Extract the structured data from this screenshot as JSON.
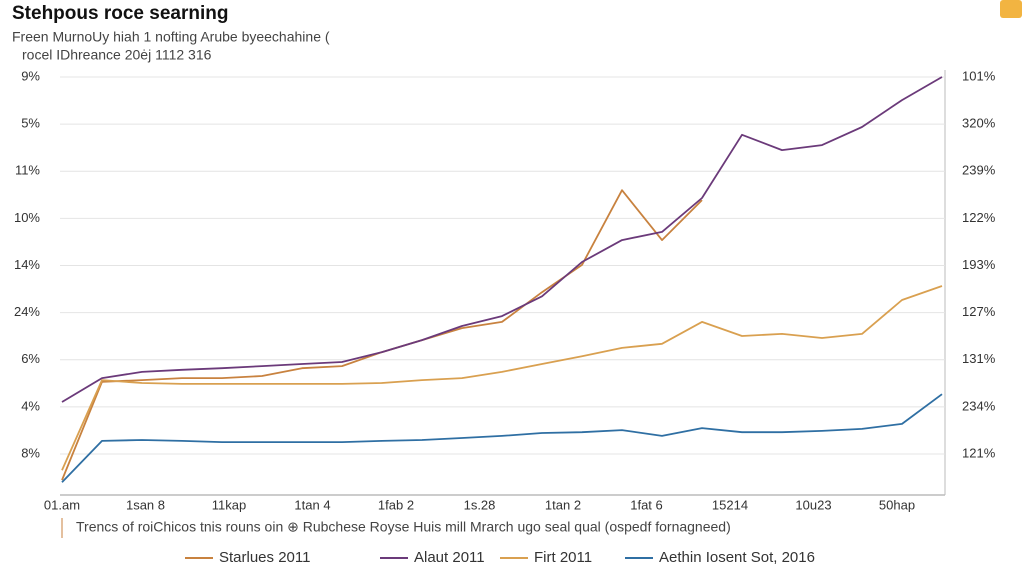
{
  "chart_data": {
    "type": "line",
    "title": "Stehpous roce searning",
    "subtitle": [
      "Freen MurnoUy hiah 1 nofting Arube byeechahine (",
      "rocel IDhreance 20ėj 1112 316"
    ],
    "caption": "Trencs of roiChicos tnis rouns oin ⊕ Rubchese Royse Huis mill Mrarch ugo seal qual (ospedf fornagneed)",
    "y_labels": [
      "9%",
      "5%",
      "11%",
      "10%",
      "14%",
      "24%",
      "6%",
      "4%",
      "8%"
    ],
    "y2_labels": [
      "101%",
      "320%",
      "239%",
      "122%",
      "193%",
      "127%",
      "131%",
      "234%",
      "121%"
    ],
    "x_labels": [
      "01.am",
      "1san 8",
      "11kap",
      "1tan 4",
      "1fab 2",
      "1s.28",
      "1tan 2",
      "1fat 6",
      "15214",
      "10u23",
      "50hap"
    ],
    "ylim": [
      0,
      100
    ],
    "grid": true,
    "series": [
      {
        "name": "Starlues 2011",
        "color": "#c8823f",
        "values": [
          2.4,
          26.2,
          26.6,
          27.1,
          27.1,
          27.6,
          29.5,
          30.0,
          33.4,
          36.3,
          39.2,
          40.7,
          47.9,
          54.5,
          72.6,
          60.5,
          70.2,
          null,
          null,
          null,
          null,
          null,
          null
        ]
      },
      {
        "name": "Alaut 2011",
        "color": "#6b3a7a",
        "values": [
          21.3,
          27.1,
          28.6,
          29.1,
          29.5,
          30.0,
          30.5,
          31.0,
          33.4,
          36.3,
          39.7,
          42.1,
          46.9,
          55.2,
          60.5,
          62.5,
          70.7,
          86.0,
          82.3,
          83.5,
          87.9,
          94.4,
          100
        ]
      },
      {
        "name": "Firt 2011",
        "color": "#d9a050",
        "values": [
          4.8,
          26.6,
          25.9,
          25.7,
          25.7,
          25.7,
          25.7,
          25.7,
          25.9,
          26.6,
          27.1,
          28.6,
          30.5,
          32.4,
          34.4,
          35.4,
          40.7,
          37.3,
          37.8,
          36.8,
          37.8,
          46.0,
          49.4
        ]
      },
      {
        "name": "Aethin Iosent Sot, 2016",
        "color": "#2f6fa3",
        "values": [
          1.9,
          11.9,
          12.1,
          11.9,
          11.6,
          11.6,
          11.6,
          11.6,
          11.9,
          12.1,
          12.6,
          13.1,
          13.8,
          14.0,
          14.5,
          13.1,
          15.0,
          14.0,
          14.0,
          14.3,
          14.8,
          16.0,
          23.2
        ]
      }
    ]
  }
}
